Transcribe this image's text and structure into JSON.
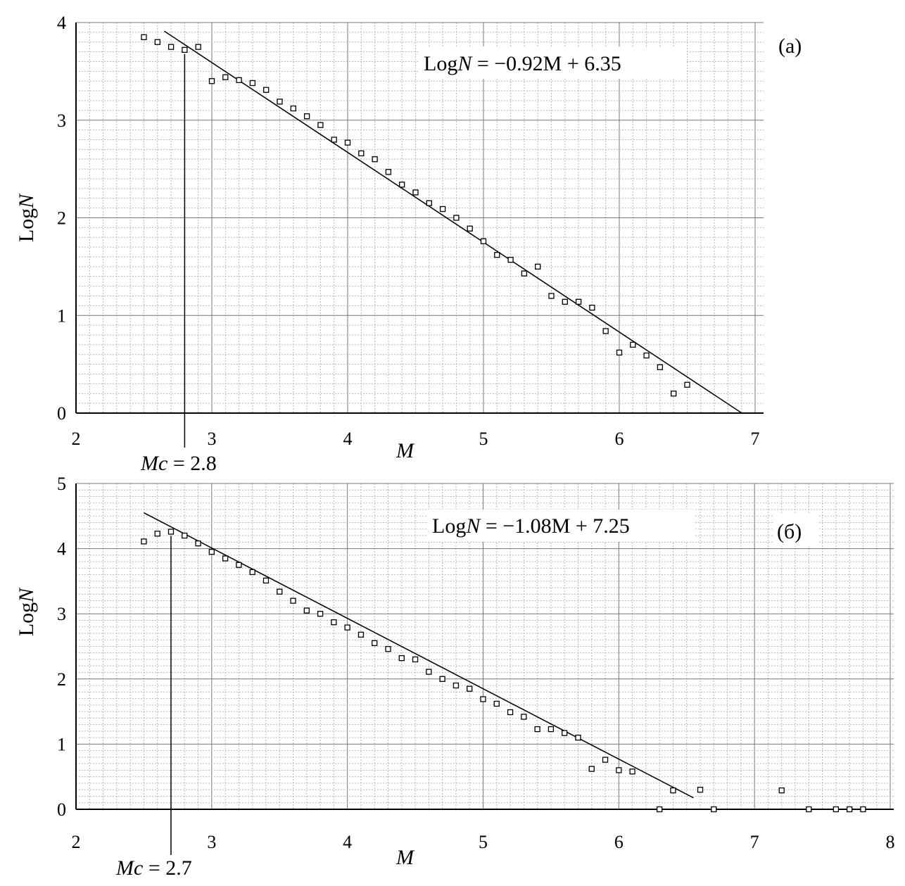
{
  "chart_data": [
    {
      "type": "scatter",
      "panel_label": "(a)",
      "equation_prefix": "Log",
      "equation_var": "N",
      "equation_rest": " = −0.92M + 6.35",
      "xlabel": "M",
      "ylabel_prefix": "Log",
      "ylabel_var": "N",
      "xlim": [
        2,
        7
      ],
      "ylim": [
        0,
        4
      ],
      "xticks": [
        "2",
        "3",
        "4",
        "5",
        "6",
        "7"
      ],
      "yticks": [
        "0",
        "1",
        "2",
        "3",
        "4"
      ],
      "grid": true,
      "fit_line": {
        "slope": -0.92,
        "intercept": 6.35,
        "x_start": 2.65,
        "x_end": 6.9
      },
      "mc": {
        "value": 2.8,
        "label_var": "Mc",
        "label_rest": " = 2.8"
      },
      "series": [
        {
          "x": [
            2.5,
            2.6,
            2.7,
            2.8,
            2.9,
            3.0,
            3.1,
            3.2,
            3.3,
            3.4,
            3.5,
            3.6,
            3.7,
            3.8,
            3.9,
            4.0,
            4.1,
            4.2,
            4.3,
            4.4,
            4.5,
            4.6,
            4.7,
            4.8,
            4.9,
            5.0,
            5.1,
            5.2,
            5.3,
            5.4,
            5.5,
            5.6,
            5.7,
            5.8,
            5.9,
            6.0,
            6.1,
            6.2,
            6.3,
            6.4,
            6.5
          ],
          "y": [
            3.85,
            3.8,
            3.75,
            3.72,
            3.75,
            3.4,
            3.44,
            3.41,
            3.38,
            3.31,
            3.19,
            3.12,
            3.04,
            2.95,
            2.8,
            2.77,
            2.66,
            2.6,
            2.47,
            2.34,
            2.26,
            2.15,
            2.09,
            2.0,
            1.89,
            1.76,
            1.62,
            1.57,
            1.43,
            1.5,
            1.2,
            1.14,
            1.14,
            1.08,
            0.84,
            0.62,
            0.7,
            0.59,
            0.47,
            0.2,
            0.29
          ]
        }
      ]
    },
    {
      "type": "scatter",
      "panel_label": "(б)",
      "equation_prefix": "Log",
      "equation_var": "N",
      "equation_rest": " = −1.08M + 7.25",
      "xlabel": "M",
      "ylabel_prefix": "Log",
      "ylabel_var": "N",
      "xlim": [
        2,
        8
      ],
      "ylim": [
        0,
        5
      ],
      "xticks": [
        "2",
        "3",
        "4",
        "5",
        "6",
        "7",
        "8"
      ],
      "yticks": [
        "0",
        "1",
        "2",
        "3",
        "4",
        "5"
      ],
      "grid": true,
      "fit_line": {
        "slope": -1.08,
        "intercept": 7.25,
        "x_start": 2.5,
        "x_end": 6.55
      },
      "mc": {
        "value": 2.7,
        "label_var": "Mc",
        "label_rest": " = 2.7"
      },
      "series": [
        {
          "x": [
            2.5,
            2.6,
            2.7,
            2.8,
            2.9,
            3.0,
            3.1,
            3.2,
            3.3,
            3.4,
            3.5,
            3.6,
            3.7,
            3.8,
            3.9,
            4.0,
            4.1,
            4.2,
            4.3,
            4.4,
            4.5,
            4.6,
            4.7,
            4.8,
            4.9,
            5.0,
            5.1,
            5.2,
            5.3,
            5.4,
            5.5,
            5.6,
            5.7,
            5.8,
            5.9,
            6.0,
            6.1,
            6.3,
            6.4,
            6.6,
            6.7,
            7.2,
            7.4,
            7.6,
            7.7,
            7.8
          ],
          "y": [
            4.11,
            4.23,
            4.26,
            4.2,
            4.08,
            3.95,
            3.85,
            3.75,
            3.64,
            3.51,
            3.34,
            3.2,
            3.05,
            3.0,
            2.87,
            2.79,
            2.68,
            2.55,
            2.46,
            2.32,
            2.3,
            2.11,
            2.0,
            1.9,
            1.85,
            1.69,
            1.62,
            1.49,
            1.42,
            1.23,
            1.23,
            1.17,
            1.1,
            0.62,
            0.76,
            0.6,
            0.58,
            0.0,
            0.29,
            0.3,
            0.0,
            0.29,
            0.0,
            0.0,
            0.0,
            0.0
          ]
        }
      ]
    }
  ]
}
